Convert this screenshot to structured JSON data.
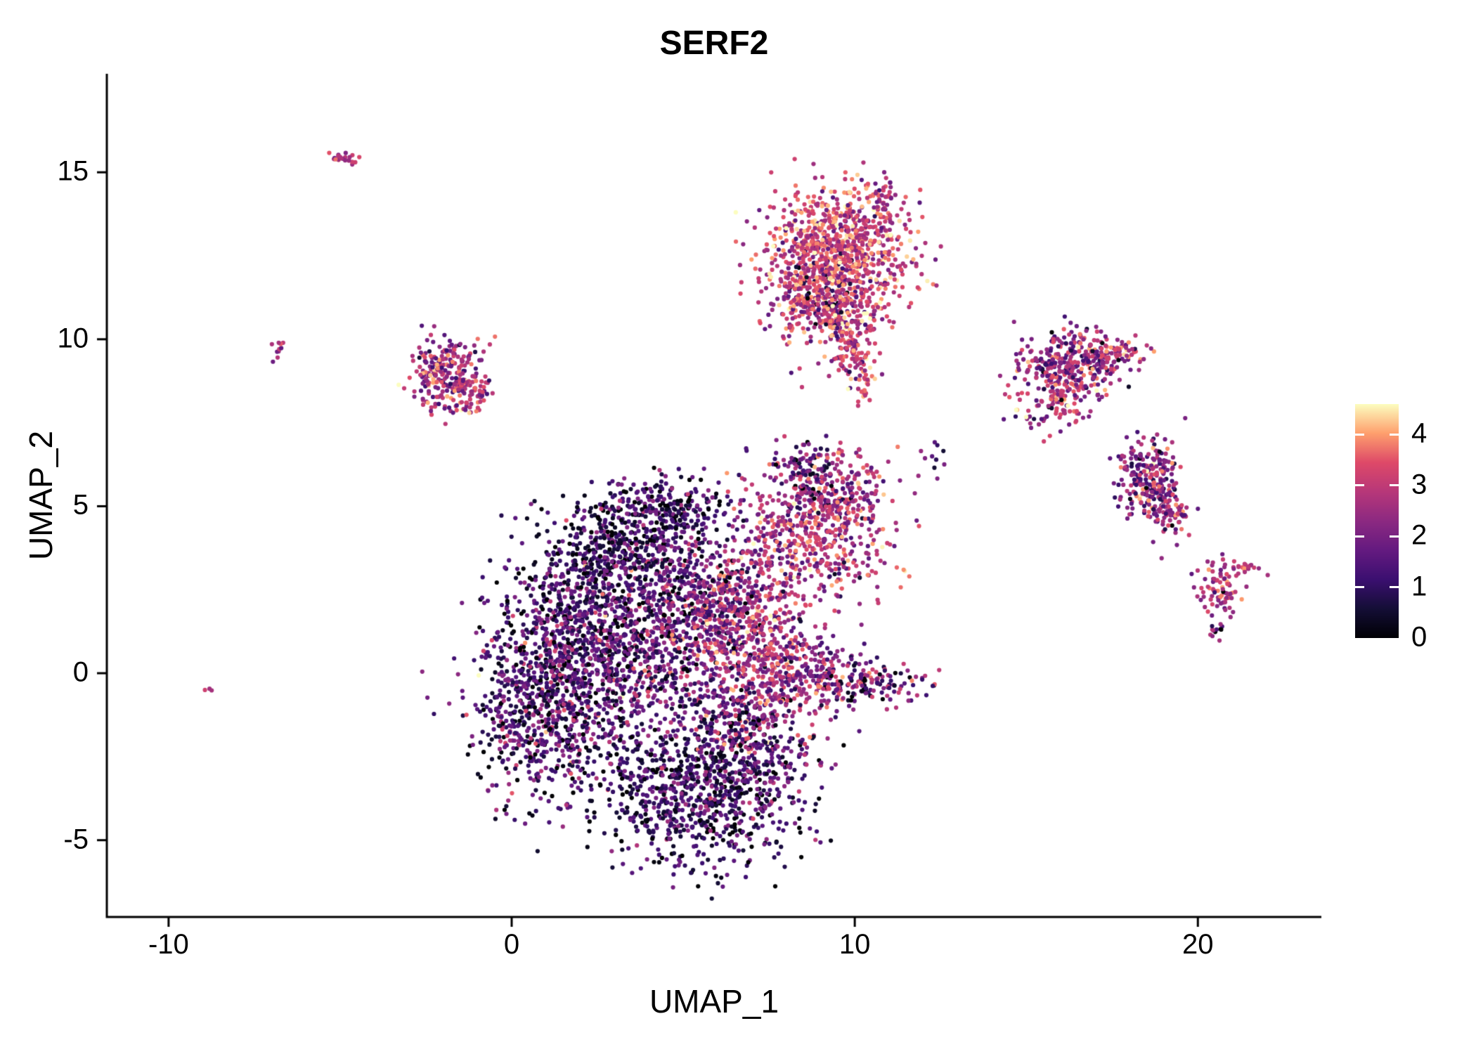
{
  "title": "SERF2",
  "axes": {
    "x": {
      "label": "UMAP_1",
      "ticks": [
        -10,
        0,
        10,
        20
      ],
      "range": [
        -11.8,
        23.6
      ]
    },
    "y": {
      "label": "UMAP_2",
      "ticks": [
        -5,
        0,
        5,
        10,
        15
      ],
      "range": [
        -7.3,
        17.95
      ]
    }
  },
  "legend": {
    "ticks": [
      4,
      3,
      2,
      1,
      0
    ],
    "vmin": 0,
    "vmax": 4.6
  },
  "colors": {
    "background": "#ffffff",
    "axis": "#000000",
    "text": "#000000",
    "magma_stops": [
      "#000004",
      "#140E36",
      "#3B0F70",
      "#641A80",
      "#8C2981",
      "#B73779",
      "#DE4968",
      "#FE9F6D",
      "#FCFDBF"
    ]
  },
  "chart_data": {
    "type": "scatter",
    "title": "SERF2",
    "xlabel": "UMAP_1",
    "ylabel": "UMAP_2",
    "xlim": [
      -11.8,
      23.6
    ],
    "ylim": [
      -7.3,
      17.95
    ],
    "grid": false,
    "legend_position": "right",
    "color_scale": {
      "name": "magma",
      "domain": [
        0,
        4.6
      ],
      "legend_ticks": [
        0,
        1,
        2,
        3,
        4
      ]
    },
    "point_radius_px": 3.1,
    "seed": 42,
    "clusters": [
      {
        "name": "main-left",
        "cx": 1.0,
        "cy": -0.8,
        "sx": 1.1,
        "sy": 1.5,
        "n": 850,
        "expr_mean": 1.3,
        "expr_sd": 1.0
      },
      {
        "name": "main-left-upper",
        "cx": 2.2,
        "cy": 1.5,
        "sx": 1.2,
        "sy": 1.2,
        "n": 500,
        "expr_mean": 1.2,
        "expr_sd": 0.9
      },
      {
        "name": "main-top-dark",
        "cx": 3.2,
        "cy": 3.6,
        "sx": 1.2,
        "sy": 0.9,
        "n": 450,
        "expr_mean": 0.9,
        "expr_sd": 0.7
      },
      {
        "name": "main-top-ridge",
        "cx": 4.5,
        "cy": 4.9,
        "sx": 1.0,
        "sy": 0.5,
        "n": 220,
        "expr_mean": 1.0,
        "expr_sd": 0.8
      },
      {
        "name": "main-center",
        "cx": 4.2,
        "cy": 0.8,
        "sx": 1.5,
        "sy": 1.5,
        "n": 700,
        "expr_mean": 1.6,
        "expr_sd": 1.0
      },
      {
        "name": "main-bottom-dark",
        "cx": 5.3,
        "cy": -3.6,
        "sx": 1.5,
        "sy": 1.1,
        "n": 750,
        "expr_mean": 1.0,
        "expr_sd": 0.8
      },
      {
        "name": "main-bottom-right",
        "cx": 7.0,
        "cy": -2.2,
        "sx": 1.0,
        "sy": 1.0,
        "n": 350,
        "expr_mean": 1.4,
        "expr_sd": 1.0
      },
      {
        "name": "main-right-orange",
        "cx": 7.0,
        "cy": 0.6,
        "sx": 0.9,
        "sy": 1.4,
        "n": 500,
        "expr_mean": 2.7,
        "expr_sd": 0.8
      },
      {
        "name": "main-upper-mid",
        "cx": 5.8,
        "cy": 2.2,
        "sx": 1.1,
        "sy": 0.9,
        "n": 350,
        "expr_mean": 2.0,
        "expr_sd": 0.9
      },
      {
        "name": "arm-right",
        "cx": 8.6,
        "cy": 0.1,
        "sx": 0.9,
        "sy": 0.6,
        "n": 220,
        "expr_mean": 2.4,
        "expr_sd": 0.9
      },
      {
        "name": "arm-right-tip",
        "cx": 10.3,
        "cy": -0.3,
        "sx": 0.8,
        "sy": 0.3,
        "n": 130,
        "expr_mean": 1.6,
        "expr_sd": 1.2
      },
      {
        "name": "ring-mid",
        "cx": 8.7,
        "cy": 4.0,
        "sx": 1.1,
        "sy": 0.9,
        "n": 480,
        "expr_mean": 2.7,
        "expr_sd": 0.8
      },
      {
        "name": "ring-mid-upper",
        "cx": 9.6,
        "cy": 5.4,
        "sx": 0.7,
        "sy": 0.6,
        "n": 180,
        "expr_mean": 2.5,
        "expr_sd": 0.9
      },
      {
        "name": "neck",
        "cx": 8.4,
        "cy": 6.2,
        "sx": 0.5,
        "sy": 0.4,
        "n": 70,
        "expr_mean": 2.0,
        "expr_sd": 1.0
      },
      {
        "name": "neck-dark",
        "cx": 8.7,
        "cy": 6.0,
        "sx": 0.25,
        "sy": 0.5,
        "n": 35,
        "expr_mean": 0.8,
        "expr_sd": 0.5
      },
      {
        "name": "top-cluster-core",
        "cx": 9.6,
        "cy": 12.7,
        "sx": 1.0,
        "sy": 0.9,
        "n": 850,
        "expr_mean": 3.2,
        "expr_sd": 0.8
      },
      {
        "name": "top-cluster-arm",
        "cx": 8.5,
        "cy": 11.6,
        "sx": 0.45,
        "sy": 0.9,
        "n": 160,
        "expr_mean": 2.9,
        "expr_sd": 0.8
      },
      {
        "name": "top-cluster-low",
        "cx": 9.6,
        "cy": 10.9,
        "sx": 0.8,
        "sy": 0.6,
        "n": 220,
        "expr_mean": 2.9,
        "expr_sd": 0.9
      },
      {
        "name": "top-cluster-tail",
        "cx": 9.9,
        "cy": 9.8,
        "sx": 0.35,
        "sy": 0.6,
        "n": 100,
        "expr_mean": 3.0,
        "expr_sd": 0.8
      },
      {
        "name": "top-tail-tip",
        "cx": 10.3,
        "cy": 8.6,
        "sx": 0.15,
        "sy": 0.25,
        "n": 25,
        "expr_mean": 3.2,
        "expr_sd": 0.6
      },
      {
        "name": "top-nub",
        "cx": 10.8,
        "cy": 14.3,
        "sx": 0.2,
        "sy": 0.3,
        "n": 35,
        "expr_mean": 2.8,
        "expr_sd": 0.7
      },
      {
        "name": "top-dark-spots",
        "cx": 9.2,
        "cy": 11.4,
        "sx": 0.5,
        "sy": 0.5,
        "n": 50,
        "expr_mean": 0.7,
        "expr_sd": 0.5
      },
      {
        "name": "right-upper",
        "cx": 16.2,
        "cy": 9.2,
        "sx": 0.75,
        "sy": 0.55,
        "n": 300,
        "expr_mean": 2.4,
        "expr_sd": 1.0
      },
      {
        "name": "right-upper-arm",
        "cx": 17.5,
        "cy": 9.6,
        "sx": 0.5,
        "sy": 0.25,
        "n": 70,
        "expr_mean": 2.6,
        "expr_sd": 0.8
      },
      {
        "name": "right-upper-below",
        "cx": 16.1,
        "cy": 8.2,
        "sx": 0.4,
        "sy": 0.4,
        "n": 70,
        "expr_mean": 2.7,
        "expr_sd": 0.9
      },
      {
        "name": "right-upper-spray",
        "cx": 15.4,
        "cy": 7.7,
        "sx": 0.5,
        "sy": 0.4,
        "n": 30,
        "expr_mean": 2.5,
        "expr_sd": 1.0
      },
      {
        "name": "right-mid",
        "cx": 18.6,
        "cy": 5.7,
        "sx": 0.45,
        "sy": 0.75,
        "n": 260,
        "expr_mean": 2.2,
        "expr_sd": 0.9
      },
      {
        "name": "right-mid-tail",
        "cx": 19.3,
        "cy": 4.8,
        "sx": 0.25,
        "sy": 0.3,
        "n": 40,
        "expr_mean": 2.4,
        "expr_sd": 0.9
      },
      {
        "name": "far-right",
        "cx": 20.6,
        "cy": 2.6,
        "sx": 0.3,
        "sy": 0.4,
        "n": 80,
        "expr_mean": 2.7,
        "expr_sd": 0.7
      },
      {
        "name": "far-right-arm",
        "cx": 21.4,
        "cy": 3.2,
        "sx": 0.25,
        "sy": 0.15,
        "n": 20,
        "expr_mean": 2.9,
        "expr_sd": 0.5
      },
      {
        "name": "far-right-below",
        "cx": 20.5,
        "cy": 1.3,
        "sx": 0.12,
        "sy": 0.25,
        "n": 12,
        "expr_mean": 1.5,
        "expr_sd": 1.2
      },
      {
        "name": "left-cluster",
        "cx": -1.9,
        "cy": 9.0,
        "sx": 0.55,
        "sy": 0.5,
        "n": 230,
        "expr_mean": 2.7,
        "expr_sd": 0.9
      },
      {
        "name": "left-cluster-arm",
        "cx": -1.2,
        "cy": 8.4,
        "sx": 0.35,
        "sy": 0.3,
        "n": 60,
        "expr_mean": 2.8,
        "expr_sd": 0.8
      },
      {
        "name": "tiny-topleft",
        "cx": -4.9,
        "cy": 15.4,
        "sx": 0.28,
        "sy": 0.1,
        "n": 22,
        "expr_mean": 2.8,
        "expr_sd": 0.5
      },
      {
        "name": "tiny-left",
        "cx": -6.85,
        "cy": 9.6,
        "sx": 0.1,
        "sy": 0.18,
        "n": 10,
        "expr_mean": 2.7,
        "expr_sd": 0.5
      },
      {
        "name": "lone-left",
        "cx": -8.8,
        "cy": -0.45,
        "sx": 0.06,
        "sy": 0.06,
        "n": 3,
        "expr_mean": 2.8,
        "expr_sd": 0.3
      },
      {
        "name": "mid-right-dots",
        "cx": 12.4,
        "cy": 6.5,
        "sx": 0.25,
        "sy": 0.2,
        "n": 10,
        "expr_mean": 1.8,
        "expr_sd": 1.2
      },
      {
        "name": "mid-dots",
        "cx": 10.1,
        "cy": 6.6,
        "sx": 0.15,
        "sy": 0.12,
        "n": 5,
        "expr_mean": 2.5,
        "expr_sd": 0.8
      }
    ]
  }
}
